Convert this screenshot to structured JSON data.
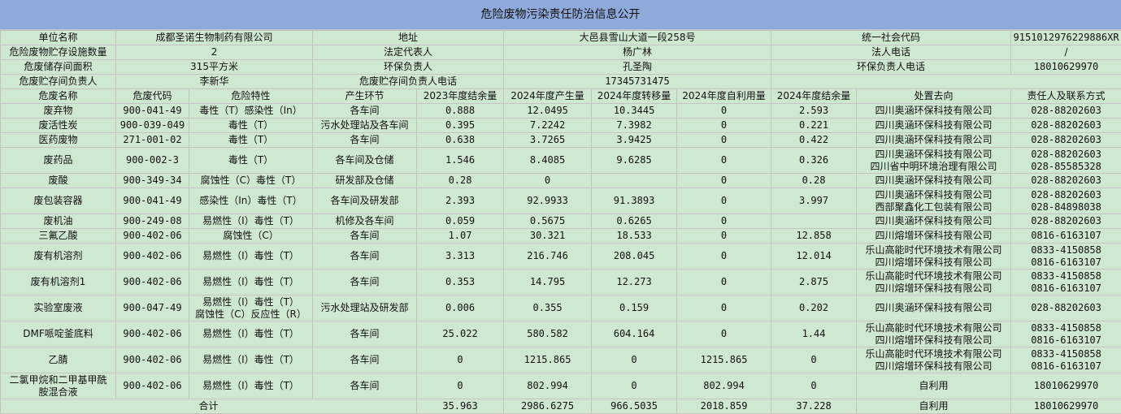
{
  "title": "危险废物污染责任防治信息公开",
  "info": {
    "unit_label": "单位名称",
    "unit": "成都圣诺生物制药有限公司",
    "addr_label": "地址",
    "addr": "大邑县雪山大道一段258号",
    "code_label": "统一社会代码",
    "code": "915101297622988 6XR",
    "facility_label": "危险废物贮存设施数量",
    "facility": "2",
    "legal_label": "法定代表人",
    "legal": "杨广林",
    "legal_phone_label": "法人电话",
    "legal_phone": "/",
    "area_label": "危废储存间面积",
    "area": "315平方米",
    "env_label": "环保负责人",
    "env": "孔圣陶",
    "env_phone_label": "环保负责人电话",
    "env_phone": "18010629970",
    "keeper_label": "危废贮存间负责人",
    "keeper": "李新华",
    "keeper_phone_label": "危废贮存间负责人电话",
    "keeper_phone": "17345731475"
  },
  "columns": [
    "危废名称",
    "危废代码",
    "危险特性",
    "产生环节",
    "2023年度结余量",
    "2024年度产生量",
    "2024年度转移量",
    "2024年度自利用量",
    "2024年度结余量",
    "处置去向",
    "责任人及联系方式"
  ],
  "rows": [
    {
      "name": [
        "废弃物"
      ],
      "code": "900-041-49",
      "prop": [
        "毒性（T）感染性（In）"
      ],
      "src": "各车间",
      "b23": "0.888",
      "gen": "12.0495",
      "trans": "10.3445",
      "self": "0",
      "b24": "2.593",
      "dest": [
        "四川奥涵环保科技有限公司"
      ],
      "contact": [
        "028-88202603"
      ]
    },
    {
      "name": [
        "废活性炭"
      ],
      "code": "900-039-049",
      "prop": [
        "毒性（T）"
      ],
      "src": "污水处理站及各车间",
      "b23": "0.395",
      "gen": "7.2242",
      "trans": "7.3982",
      "self": "0",
      "b24": "0.221",
      "dest": [
        "四川奥涵环保科技有限公司"
      ],
      "contact": [
        "028-88202603"
      ]
    },
    {
      "name": [
        "医药废物"
      ],
      "code": "271-001-02",
      "prop": [
        "毒性（T）"
      ],
      "src": "各车间",
      "b23": "0.638",
      "gen": "3.7265",
      "trans": "3.9425",
      "self": "0",
      "b24": "0.422",
      "dest": [
        "四川奥涵环保科技有限公司"
      ],
      "contact": [
        "028-88202603"
      ]
    },
    {
      "name": [
        "废药品"
      ],
      "code": "900-002-3",
      "prop": [
        "毒性（T）"
      ],
      "src": "各车间及仓储",
      "b23": "1.546",
      "gen": "8.4085",
      "trans": "9.6285",
      "self": "0",
      "b24": "0.326",
      "dest": [
        "四川奥涵环保科技有限公司",
        "四川省中明环境治理有限公司"
      ],
      "contact": [
        "028-88202603",
        "028-85585328"
      ]
    },
    {
      "name": [
        "废酸"
      ],
      "code": "900-349-34",
      "prop": [
        "腐蚀性（C）毒性（T）"
      ],
      "src": "研发部及仓储",
      "b23": "0.28",
      "gen": "0",
      "trans": "",
      "self": "0",
      "b24": "0.28",
      "dest": [
        "四川奥涵环保科技有限公司"
      ],
      "contact": [
        "028-88202603"
      ]
    },
    {
      "name": [
        "废包装容器"
      ],
      "code": "900-041-49",
      "prop": [
        "感染性（In）毒性（T）"
      ],
      "src": "各车间及研发部",
      "b23": "2.393",
      "gen": "92.9933",
      "trans": "91.3893",
      "self": "0",
      "b24": "3.997",
      "dest": [
        "四川奥涵环保科技有限公司",
        "西部聚鑫化工包装有限公司"
      ],
      "contact": [
        "028-88202603",
        "028-84898038"
      ]
    },
    {
      "name": [
        "废机油"
      ],
      "code": "900-249-08",
      "prop": [
        "易燃性（I）毒性（T）"
      ],
      "src": "机修及各车间",
      "b23": "0.059",
      "gen": "0.5675",
      "trans": "0.6265",
      "self": "0",
      "b24": "",
      "dest": [
        "四川奥涵环保科技有限公司"
      ],
      "contact": [
        "028-88202603"
      ]
    },
    {
      "name": [
        "三氟乙酸"
      ],
      "code": "900-402-06",
      "prop": [
        "腐蚀性（C）"
      ],
      "src": "各车间",
      "b23": "1.07",
      "gen": "30.321",
      "trans": "18.533",
      "self": "0",
      "b24": "12.858",
      "dest": [
        "四川熔增环保科技有限公司"
      ],
      "contact": [
        "0816-6163107"
      ]
    },
    {
      "name": [
        "废有机溶剂"
      ],
      "code": "900-402-06",
      "prop": [
        "易燃性（I）毒性（T）"
      ],
      "src": "各车间",
      "b23": "3.313",
      "gen": "216.746",
      "trans": "208.045",
      "self": "0",
      "b24": "12.014",
      "dest": [
        "乐山高能时代环境技术有限公司",
        "四川熔增环保科技有限公司"
      ],
      "contact": [
        "0833-4150858",
        "0816-6163107"
      ]
    },
    {
      "name": [
        "废有机溶剂1"
      ],
      "code": "900-402-06",
      "prop": [
        "易燃性（I）毒性（T）"
      ],
      "src": "各车间",
      "b23": "0.353",
      "gen": "14.795",
      "trans": "12.273",
      "self": "0",
      "b24": "2.875",
      "dest": [
        "乐山高能时代环境技术有限公司",
        "四川熔增环保科技有限公司"
      ],
      "contact": [
        "0833-4150858",
        "0816-6163107"
      ]
    },
    {
      "name": [
        "实验室废液"
      ],
      "code": "900-047-49",
      "prop": [
        "易燃性（I）毒性（T）",
        "腐蚀性（C）反应性（R）"
      ],
      "src": "污水处理站及研发部",
      "b23": "0.006",
      "gen": "0.355",
      "trans": "0.159",
      "self": "0",
      "b24": "0.202",
      "dest": [
        "四川奥涵环保科技有限公司"
      ],
      "contact": [
        "028-88202603"
      ]
    },
    {
      "name": [
        "DMF哌啶釜底料"
      ],
      "code": "900-402-06",
      "prop": [
        "易燃性（I）毒性（T）"
      ],
      "src": "各车间",
      "b23": "25.022",
      "gen": "580.582",
      "trans": "604.164",
      "self": "0",
      "b24": "1.44",
      "dest": [
        "乐山高能时代环境技术有限公司",
        "四川熔增环保科技有限公司"
      ],
      "contact": [
        "0833-4150858",
        "0816-6163107"
      ]
    },
    {
      "name": [
        "乙腈"
      ],
      "code": "900-402-06",
      "prop": [
        "易燃性（I）毒性（T）"
      ],
      "src": "各车间",
      "b23": "0",
      "gen": "1215.865",
      "trans": "0",
      "self": "1215.865",
      "b24": "0",
      "dest": [
        "乐山高能时代环境技术有限公司",
        "四川熔增环保科技有限公司"
      ],
      "contact": [
        "0833-4150858",
        "0816-6163107"
      ]
    },
    {
      "name": [
        "二氯甲烷和二甲基甲酰",
        "胺混合液"
      ],
      "code": "900-402-06",
      "prop": [
        "易燃性（I）毒性（T）"
      ],
      "src": "各车间",
      "b23": "0",
      "gen": "802.994",
      "trans": "0",
      "self": "802.994",
      "b24": "0",
      "dest": [
        "自利用"
      ],
      "contact": [
        "18010629970"
      ]
    }
  ],
  "total": {
    "label": "合计",
    "b23": "35.963",
    "gen": "2986.6275",
    "trans": "966.5035",
    "self": "2018.859",
    "b24": "37.228",
    "dest": "自利用",
    "contact": "18010629970"
  }
}
